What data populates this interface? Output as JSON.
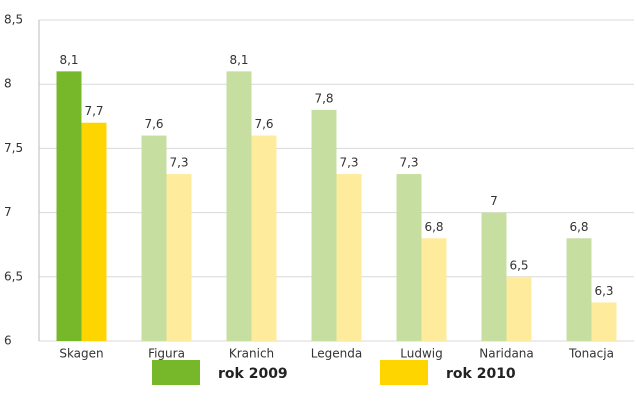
{
  "chart_data": {
    "type": "bar",
    "categories": [
      "Skagen",
      "Figura",
      "Kranich",
      "Legenda",
      "Ludwig",
      "Naridana",
      "Tonacja"
    ],
    "series": [
      {
        "name": "rok 2009",
        "color": "#77b82a",
        "colors": [
          "#77b82a",
          "#c6dfa1",
          "#c6dfa1",
          "#c6dfa1",
          "#c6dfa1",
          "#c6dfa1",
          "#c6dfa1"
        ],
        "values": [
          8.1,
          7.6,
          8.1,
          7.8,
          7.3,
          7,
          6.8
        ],
        "value_labels": [
          "8,1",
          "7,6",
          "8,1",
          "7,8",
          "7,3",
          "7",
          "6,8"
        ]
      },
      {
        "name": "rok 2010",
        "color": "#ffd500",
        "colors": [
          "#ffd500",
          "#ffeb9c",
          "#ffeb9c",
          "#ffeb9c",
          "#ffeb9c",
          "#ffeb9c",
          "#ffeb9c"
        ],
        "values": [
          7.7,
          7.3,
          7.6,
          7.3,
          6.8,
          6.5,
          6.3
        ],
        "value_labels": [
          "7,7",
          "7,3",
          "7,6",
          "7,3",
          "6,8",
          "6,5",
          "6,3"
        ]
      }
    ],
    "ylim": [
      6,
      8.5
    ],
    "yticks": [
      6,
      {
        "value": 6.5,
        "label": "6,5"
      },
      7,
      {
        "value": 7.5,
        "label": "7,5"
      },
      8,
      {
        "value": 8.5,
        "label": "8,5"
      }
    ],
    "grid": true
  }
}
